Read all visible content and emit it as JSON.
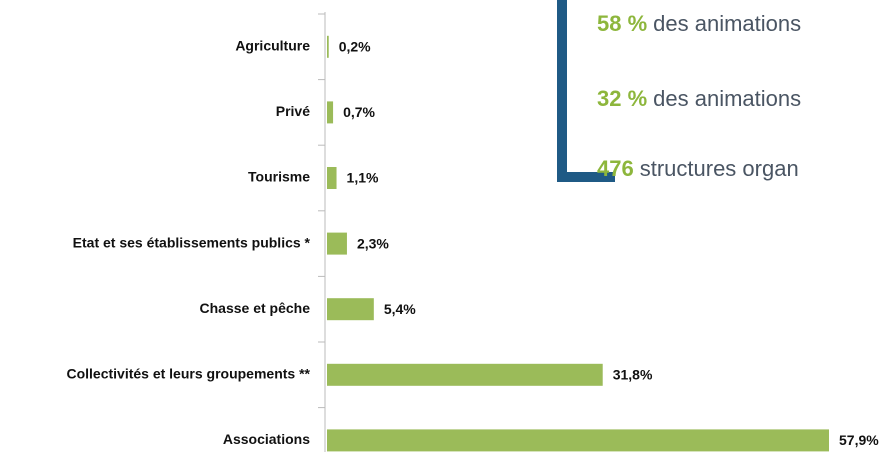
{
  "chart_data": {
    "type": "bar",
    "orientation": "horizontal",
    "categories": [
      "Agriculture",
      "Privé",
      "Tourisme",
      "Etat et ses établissements publics *",
      "Chasse et pêche",
      "Collectivités et leurs groupements **",
      "Associations"
    ],
    "values": [
      0.2,
      0.7,
      1.1,
      2.3,
      5.4,
      31.8,
      57.9
    ],
    "value_labels": [
      "0,2%",
      "0,7%",
      "1,1%",
      "2,3%",
      "5,4%",
      "31,8%",
      "57,9%"
    ],
    "color": "#9bbb59"
  },
  "highlights": [
    {
      "number": "58 %",
      "text": "des animations"
    },
    {
      "number": "32 %",
      "text": "des animations"
    },
    {
      "number": "476",
      "text": "structures organ"
    }
  ]
}
